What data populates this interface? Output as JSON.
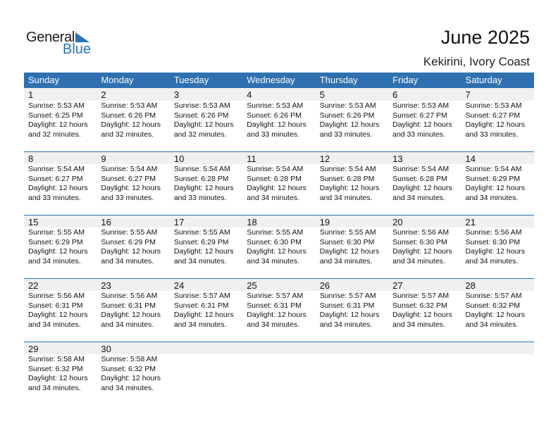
{
  "logo": {
    "general": "General",
    "blue": "Blue"
  },
  "header": {
    "title": "June 2025",
    "location": "Kekirini, Ivory Coast"
  },
  "days_of_week": [
    "Sunday",
    "Monday",
    "Tuesday",
    "Wednesday",
    "Thursday",
    "Friday",
    "Saturday"
  ],
  "colors": {
    "accent": "#2e70b0",
    "date_strip": "#f0f0f0"
  },
  "weeks": [
    [
      {
        "date": "1",
        "sunrise": "Sunrise: 5:53 AM",
        "sunset": "Sunset: 6:25 PM",
        "daylight1": "Daylight: 12 hours",
        "daylight2": "and 32 minutes."
      },
      {
        "date": "2",
        "sunrise": "Sunrise: 5:53 AM",
        "sunset": "Sunset: 6:26 PM",
        "daylight1": "Daylight: 12 hours",
        "daylight2": "and 32 minutes."
      },
      {
        "date": "3",
        "sunrise": "Sunrise: 5:53 AM",
        "sunset": "Sunset: 6:26 PM",
        "daylight1": "Daylight: 12 hours",
        "daylight2": "and 32 minutes."
      },
      {
        "date": "4",
        "sunrise": "Sunrise: 5:53 AM",
        "sunset": "Sunset: 6:26 PM",
        "daylight1": "Daylight: 12 hours",
        "daylight2": "and 33 minutes."
      },
      {
        "date": "5",
        "sunrise": "Sunrise: 5:53 AM",
        "sunset": "Sunset: 6:26 PM",
        "daylight1": "Daylight: 12 hours",
        "daylight2": "and 33 minutes."
      },
      {
        "date": "6",
        "sunrise": "Sunrise: 5:53 AM",
        "sunset": "Sunset: 6:27 PM",
        "daylight1": "Daylight: 12 hours",
        "daylight2": "and 33 minutes."
      },
      {
        "date": "7",
        "sunrise": "Sunrise: 5:53 AM",
        "sunset": "Sunset: 6:27 PM",
        "daylight1": "Daylight: 12 hours",
        "daylight2": "and 33 minutes."
      }
    ],
    [
      {
        "date": "8",
        "sunrise": "Sunrise: 5:54 AM",
        "sunset": "Sunset: 6:27 PM",
        "daylight1": "Daylight: 12 hours",
        "daylight2": "and 33 minutes."
      },
      {
        "date": "9",
        "sunrise": "Sunrise: 5:54 AM",
        "sunset": "Sunset: 6:27 PM",
        "daylight1": "Daylight: 12 hours",
        "daylight2": "and 33 minutes."
      },
      {
        "date": "10",
        "sunrise": "Sunrise: 5:54 AM",
        "sunset": "Sunset: 6:28 PM",
        "daylight1": "Daylight: 12 hours",
        "daylight2": "and 33 minutes."
      },
      {
        "date": "11",
        "sunrise": "Sunrise: 5:54 AM",
        "sunset": "Sunset: 6:28 PM",
        "daylight1": "Daylight: 12 hours",
        "daylight2": "and 34 minutes."
      },
      {
        "date": "12",
        "sunrise": "Sunrise: 5:54 AM",
        "sunset": "Sunset: 6:28 PM",
        "daylight1": "Daylight: 12 hours",
        "daylight2": "and 34 minutes."
      },
      {
        "date": "13",
        "sunrise": "Sunrise: 5:54 AM",
        "sunset": "Sunset: 6:28 PM",
        "daylight1": "Daylight: 12 hours",
        "daylight2": "and 34 minutes."
      },
      {
        "date": "14",
        "sunrise": "Sunrise: 5:54 AM",
        "sunset": "Sunset: 6:29 PM",
        "daylight1": "Daylight: 12 hours",
        "daylight2": "and 34 minutes."
      }
    ],
    [
      {
        "date": "15",
        "sunrise": "Sunrise: 5:55 AM",
        "sunset": "Sunset: 6:29 PM",
        "daylight1": "Daylight: 12 hours",
        "daylight2": "and 34 minutes."
      },
      {
        "date": "16",
        "sunrise": "Sunrise: 5:55 AM",
        "sunset": "Sunset: 6:29 PM",
        "daylight1": "Daylight: 12 hours",
        "daylight2": "and 34 minutes."
      },
      {
        "date": "17",
        "sunrise": "Sunrise: 5:55 AM",
        "sunset": "Sunset: 6:29 PM",
        "daylight1": "Daylight: 12 hours",
        "daylight2": "and 34 minutes."
      },
      {
        "date": "18",
        "sunrise": "Sunrise: 5:55 AM",
        "sunset": "Sunset: 6:30 PM",
        "daylight1": "Daylight: 12 hours",
        "daylight2": "and 34 minutes."
      },
      {
        "date": "19",
        "sunrise": "Sunrise: 5:55 AM",
        "sunset": "Sunset: 6:30 PM",
        "daylight1": "Daylight: 12 hours",
        "daylight2": "and 34 minutes."
      },
      {
        "date": "20",
        "sunrise": "Sunrise: 5:56 AM",
        "sunset": "Sunset: 6:30 PM",
        "daylight1": "Daylight: 12 hours",
        "daylight2": "and 34 minutes."
      },
      {
        "date": "21",
        "sunrise": "Sunrise: 5:56 AM",
        "sunset": "Sunset: 6:30 PM",
        "daylight1": "Daylight: 12 hours",
        "daylight2": "and 34 minutes."
      }
    ],
    [
      {
        "date": "22",
        "sunrise": "Sunrise: 5:56 AM",
        "sunset": "Sunset: 6:31 PM",
        "daylight1": "Daylight: 12 hours",
        "daylight2": "and 34 minutes."
      },
      {
        "date": "23",
        "sunrise": "Sunrise: 5:56 AM",
        "sunset": "Sunset: 6:31 PM",
        "daylight1": "Daylight: 12 hours",
        "daylight2": "and 34 minutes."
      },
      {
        "date": "24",
        "sunrise": "Sunrise: 5:57 AM",
        "sunset": "Sunset: 6:31 PM",
        "daylight1": "Daylight: 12 hours",
        "daylight2": "and 34 minutes."
      },
      {
        "date": "25",
        "sunrise": "Sunrise: 5:57 AM",
        "sunset": "Sunset: 6:31 PM",
        "daylight1": "Daylight: 12 hours",
        "daylight2": "and 34 minutes."
      },
      {
        "date": "26",
        "sunrise": "Sunrise: 5:57 AM",
        "sunset": "Sunset: 6:31 PM",
        "daylight1": "Daylight: 12 hours",
        "daylight2": "and 34 minutes."
      },
      {
        "date": "27",
        "sunrise": "Sunrise: 5:57 AM",
        "sunset": "Sunset: 6:32 PM",
        "daylight1": "Daylight: 12 hours",
        "daylight2": "and 34 minutes."
      },
      {
        "date": "28",
        "sunrise": "Sunrise: 5:57 AM",
        "sunset": "Sunset: 6:32 PM",
        "daylight1": "Daylight: 12 hours",
        "daylight2": "and 34 minutes."
      }
    ],
    [
      {
        "date": "29",
        "sunrise": "Sunrise: 5:58 AM",
        "sunset": "Sunset: 6:32 PM",
        "daylight1": "Daylight: 12 hours",
        "daylight2": "and 34 minutes."
      },
      {
        "date": "30",
        "sunrise": "Sunrise: 5:58 AM",
        "sunset": "Sunset: 6:32 PM",
        "daylight1": "Daylight: 12 hours",
        "daylight2": "and 34 minutes."
      }
    ]
  ]
}
